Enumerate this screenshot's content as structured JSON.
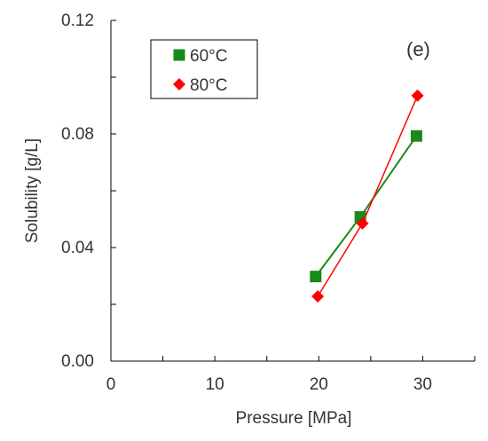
{
  "chart_data": {
    "type": "line",
    "title": "",
    "annotation": "(e)",
    "xlabel": "Pressure [MPa]",
    "ylabel": "Solubility [g/L]",
    "xlim": [
      0,
      35
    ],
    "ylim": [
      0,
      0.12
    ],
    "x_ticks": [
      0,
      5,
      10,
      15,
      20,
      25,
      30,
      35
    ],
    "x_tick_labels": [
      "0",
      "10",
      "20",
      "30"
    ],
    "x_tick_label_values": [
      0,
      10,
      20,
      30
    ],
    "y_ticks": [
      0,
      0.02,
      0.04,
      0.06,
      0.08,
      0.1,
      0.12
    ],
    "y_tick_labels": [
      "0.00",
      "0.04",
      "0.08",
      "0.12"
    ],
    "y_tick_label_values": [
      0,
      0.04,
      0.08,
      0.12
    ],
    "grid": false,
    "legend_position": "top-left",
    "series": [
      {
        "name": "60°C",
        "marker": "square",
        "color": "#1a8a1a",
        "x": [
          19.7,
          24.0,
          29.4
        ],
        "y": [
          0.0298,
          0.0508,
          0.0793
        ]
      },
      {
        "name": "80°C",
        "marker": "diamond",
        "color": "#ff0000",
        "x": [
          19.9,
          24.2,
          29.5
        ],
        "y": [
          0.0228,
          0.0485,
          0.0935
        ]
      }
    ]
  }
}
